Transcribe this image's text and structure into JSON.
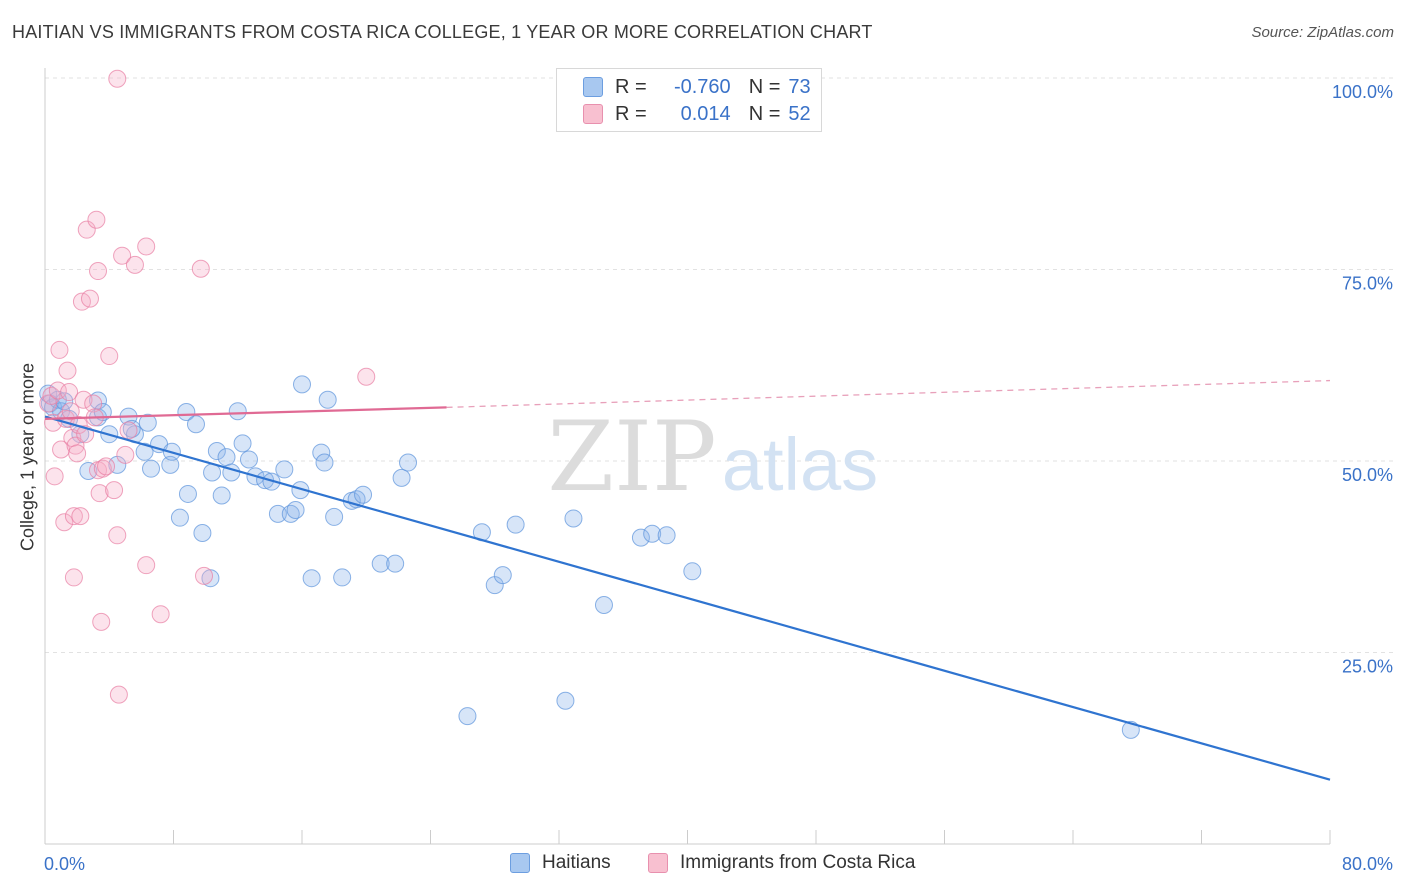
{
  "title": "HAITIAN VS IMMIGRANTS FROM COSTA RICA COLLEGE, 1 YEAR OR MORE CORRELATION CHART",
  "source": "Source: ZipAtlas.com",
  "watermark": {
    "zip": "ZIP",
    "atlas": "atlas"
  },
  "legend": {
    "r_label": "R =",
    "n_label": "N =",
    "series": [
      {
        "r": "-0.760",
        "n": "73",
        "color": "#a8c8f0",
        "edge": "#6c9ee0"
      },
      {
        "r": "0.014",
        "n": "52",
        "color": "#f8c0d0",
        "edge": "#e890ae"
      }
    ]
  },
  "bottom_legend": [
    "Haitians",
    "Immigrants from Costa Rica"
  ],
  "chart_data": {
    "type": "scatter",
    "title": "HAITIAN VS IMMIGRANTS FROM COSTA RICA COLLEGE, 1 YEAR OR MORE CORRELATION CHART",
    "xlabel": "",
    "ylabel": "College, 1 year or more",
    "xlim": [
      0,
      80
    ],
    "ylim": [
      0,
      100
    ],
    "x_tick_labels": [
      "0.0%",
      "80.0%"
    ],
    "y_ticks": [
      25,
      50,
      75,
      100
    ],
    "y_tick_labels": [
      "25.0%",
      "50.0%",
      "75.0%",
      "100.0%"
    ],
    "grid": true,
    "series": [
      {
        "name": "Haitians",
        "color": "#5b93dc",
        "fill": "rgba(140,180,235,0.35)",
        "points": [
          [
            0.2,
            58.8
          ],
          [
            0.3,
            57.5
          ],
          [
            0.5,
            57.0
          ],
          [
            0.8,
            58.0
          ],
          [
            1.0,
            56.5
          ],
          [
            1.2,
            57.8
          ],
          [
            1.5,
            55.5
          ],
          [
            2.2,
            53.5
          ],
          [
            2.7,
            48.7
          ],
          [
            3.3,
            55.7
          ],
          [
            3.3,
            57.9
          ],
          [
            3.6,
            56.4
          ],
          [
            4.0,
            53.5
          ],
          [
            4.5,
            49.5
          ],
          [
            5.2,
            55.8
          ],
          [
            5.6,
            53.5
          ],
          [
            5.4,
            54.2
          ],
          [
            6.2,
            51.2
          ],
          [
            6.4,
            55.0
          ],
          [
            6.6,
            49.0
          ],
          [
            7.1,
            52.2
          ],
          [
            7.8,
            49.5
          ],
          [
            7.9,
            51.2
          ],
          [
            8.4,
            42.6
          ],
          [
            8.8,
            56.4
          ],
          [
            8.9,
            45.7
          ],
          [
            9.4,
            54.8
          ],
          [
            9.8,
            40.6
          ],
          [
            10.3,
            34.7
          ],
          [
            10.4,
            48.5
          ],
          [
            10.7,
            51.3
          ],
          [
            11.0,
            45.5
          ],
          [
            11.3,
            50.5
          ],
          [
            11.6,
            48.5
          ],
          [
            12.0,
            56.5
          ],
          [
            12.3,
            52.3
          ],
          [
            12.7,
            50.2
          ],
          [
            13.1,
            48.0
          ],
          [
            13.7,
            47.5
          ],
          [
            14.1,
            47.3
          ],
          [
            14.5,
            43.1
          ],
          [
            14.9,
            48.9
          ],
          [
            15.3,
            43.1
          ],
          [
            15.6,
            43.6
          ],
          [
            15.9,
            46.2
          ],
          [
            16.0,
            60.0
          ],
          [
            16.6,
            34.7
          ],
          [
            17.2,
            51.1
          ],
          [
            17.4,
            49.8
          ],
          [
            17.6,
            58.0
          ],
          [
            18.0,
            42.7
          ],
          [
            18.5,
            34.8
          ],
          [
            19.1,
            44.8
          ],
          [
            19.4,
            45.0
          ],
          [
            19.8,
            45.6
          ],
          [
            20.9,
            36.6
          ],
          [
            21.8,
            36.6
          ],
          [
            22.2,
            47.8
          ],
          [
            22.6,
            49.8
          ],
          [
            26.3,
            16.7
          ],
          [
            27.2,
            40.7
          ],
          [
            28.0,
            33.8
          ],
          [
            28.5,
            35.1
          ],
          [
            29.3,
            41.7
          ],
          [
            32.4,
            18.7
          ],
          [
            32.9,
            42.5
          ],
          [
            34.8,
            31.2
          ],
          [
            37.1,
            40.0
          ],
          [
            37.8,
            40.5
          ],
          [
            38.7,
            40.3
          ],
          [
            40.3,
            35.6
          ],
          [
            67.6,
            14.9
          ]
        ],
        "trendline": {
          "x": [
            0,
            80
          ],
          "y": [
            55.8,
            8.4
          ],
          "style": "solid"
        }
      },
      {
        "name": "Immigrants from Costa Rica",
        "color": "#e87ea2",
        "fill": "rgba(245,175,200,0.35)",
        "points": [
          [
            0.2,
            57.5
          ],
          [
            0.4,
            58.5
          ],
          [
            0.5,
            55.0
          ],
          [
            0.6,
            48.0
          ],
          [
            0.8,
            59.2
          ],
          [
            0.9,
            64.5
          ],
          [
            1.0,
            51.5
          ],
          [
            1.2,
            42.0
          ],
          [
            1.3,
            55.5
          ],
          [
            1.4,
            61.8
          ],
          [
            1.5,
            59.0
          ],
          [
            1.6,
            56.5
          ],
          [
            1.7,
            53.0
          ],
          [
            1.8,
            34.8
          ],
          [
            1.8,
            42.8
          ],
          [
            1.9,
            52.0
          ],
          [
            2.0,
            51.0
          ],
          [
            2.1,
            54.7
          ],
          [
            2.2,
            42.8
          ],
          [
            2.3,
            70.8
          ],
          [
            2.4,
            58.0
          ],
          [
            2.5,
            53.5
          ],
          [
            2.6,
            80.2
          ],
          [
            2.8,
            71.2
          ],
          [
            3.0,
            57.5
          ],
          [
            3.1,
            55.7
          ],
          [
            3.2,
            81.5
          ],
          [
            3.3,
            48.8
          ],
          [
            3.3,
            74.8
          ],
          [
            3.4,
            45.8
          ],
          [
            3.5,
            29.0
          ],
          [
            3.6,
            49.0
          ],
          [
            3.8,
            49.3
          ],
          [
            4.0,
            63.7
          ],
          [
            4.3,
            46.2
          ],
          [
            4.5,
            40.3
          ],
          [
            4.5,
            99.9
          ],
          [
            4.6,
            19.5
          ],
          [
            4.8,
            76.8
          ],
          [
            5.0,
            50.8
          ],
          [
            5.2,
            54.0
          ],
          [
            5.6,
            75.6
          ],
          [
            6.3,
            36.4
          ],
          [
            6.3,
            78.0
          ],
          [
            7.2,
            30.0
          ],
          [
            9.7,
            75.1
          ],
          [
            9.9,
            35.0
          ],
          [
            20.0,
            61.0
          ]
        ],
        "trendline": {
          "x": [
            0,
            25,
            80
          ],
          "y": [
            55.5,
            57.0,
            60.5
          ],
          "style": "solid-then-dashed"
        }
      }
    ]
  }
}
